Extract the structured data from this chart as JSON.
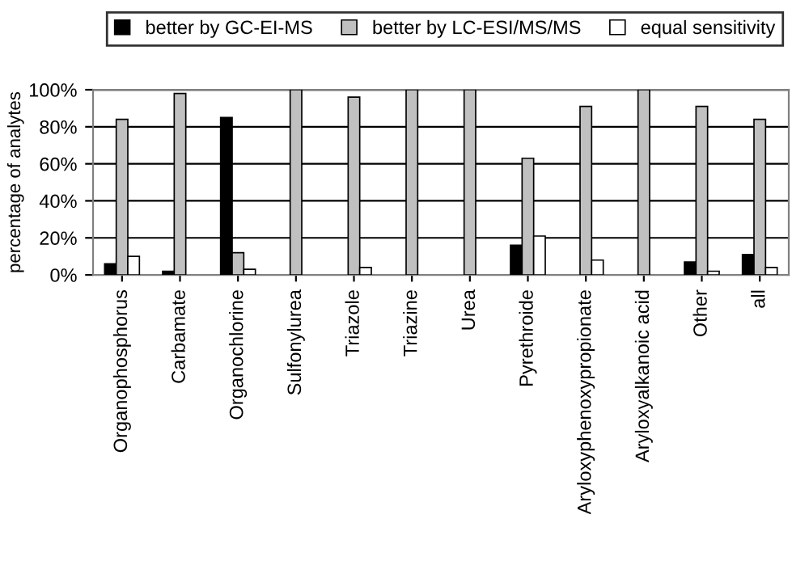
{
  "chart_data": {
    "type": "bar",
    "ylabel": "percentage of analytes",
    "categories": [
      "Organophosphorus",
      "Carbamate",
      "Organochlorine",
      "Sulfonylurea",
      "Triazole",
      "Triazine",
      "Urea",
      "Pyrethroide",
      "Aryloxyphenoxypropionate",
      "Aryloxyalkanoic acid",
      "Other",
      "all"
    ],
    "series": [
      {
        "name": "better by GC-EI-MS",
        "color": "#000000",
        "values": [
          6,
          2,
          85,
          null,
          null,
          null,
          null,
          16,
          null,
          null,
          7,
          11
        ]
      },
      {
        "name": "better by LC-ESI/MS/MS",
        "color": "#c0c0c0",
        "values": [
          84,
          98,
          12,
          100,
          96,
          100,
          100,
          63,
          91,
          100,
          91,
          84
        ]
      },
      {
        "name": "equal sensitivity",
        "color": "#ffffff",
        "values": [
          10,
          null,
          3,
          null,
          4,
          null,
          null,
          21,
          8,
          null,
          2,
          4
        ]
      }
    ],
    "ylim": [
      0,
      100
    ],
    "yticks": [
      {
        "value": 0,
        "label": "0%"
      },
      {
        "value": 20,
        "label": "20%"
      },
      {
        "value": 40,
        "label": "40%"
      },
      {
        "value": 60,
        "label": "60%"
      },
      {
        "value": 80,
        "label": "80%"
      },
      {
        "value": 100,
        "label": "100%"
      }
    ],
    "grid": "y",
    "legend": "top"
  }
}
